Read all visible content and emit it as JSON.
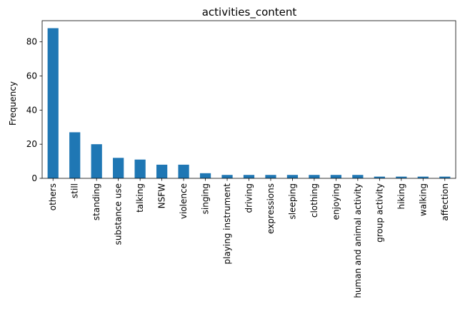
{
  "chart_data": {
    "type": "bar",
    "title": "activities_content",
    "xlabel": "",
    "ylabel": "Frequency",
    "categories": [
      "others",
      "still",
      "standing",
      "substance use",
      "talking",
      "NSFW",
      "violence",
      "singing",
      "playing instrument",
      "driving",
      "expressions",
      "sleeping",
      "clothing",
      "enjoying",
      "human and animal activity",
      "group activity",
      "hiking",
      "walking",
      "affection"
    ],
    "values": [
      88,
      27,
      20,
      12,
      11,
      8,
      8,
      3,
      2,
      2,
      2,
      2,
      2,
      2,
      2,
      1,
      1,
      1,
      1
    ],
    "ylim": [
      0,
      92.4
    ],
    "yticks": [
      0,
      20,
      40,
      60,
      80
    ],
    "grid": false,
    "legend": "none",
    "bar_color": "#1f77b4"
  }
}
